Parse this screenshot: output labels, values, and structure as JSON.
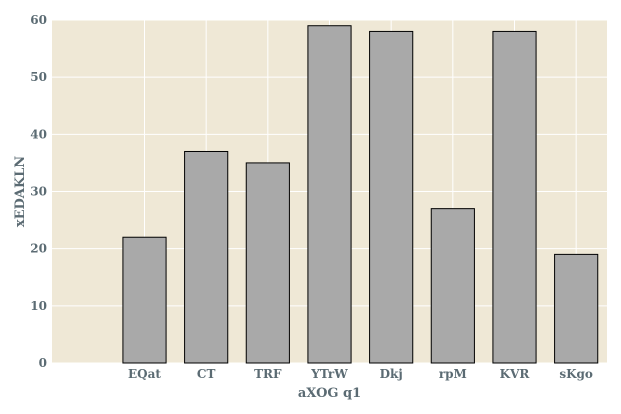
{
  "chart_data": {
    "type": "bar",
    "categories": [
      "EQat",
      "CT",
      "TRF",
      "YTrW",
      "Dkj",
      "rpM",
      "KVR",
      "sKgo"
    ],
    "values": [
      22,
      37,
      35,
      59,
      58,
      27,
      58,
      19
    ],
    "xlabel": "aXOG q1",
    "ylabel": "xEDAKLN",
    "ylim": [
      0,
      60
    ],
    "yticks": [
      0,
      10,
      20,
      30,
      40,
      50,
      60
    ],
    "grid": true,
    "colors": {
      "plot_background": "#efe8d6",
      "grid": "#ffffff",
      "bar_fill": "#a9a9a9",
      "bar_edge": "#000000",
      "text": "#5b6b73"
    }
  }
}
